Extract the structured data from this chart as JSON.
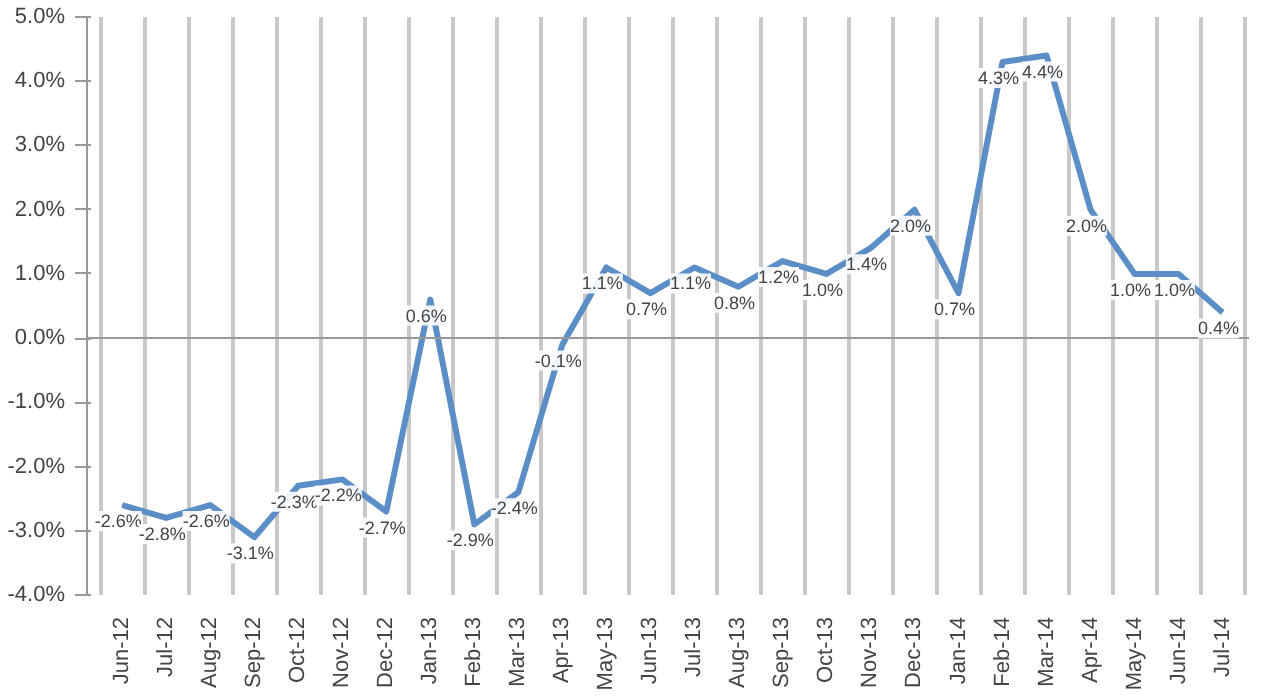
{
  "chart_data": {
    "type": "line",
    "categories": [
      "Jun-12",
      "Jul-12",
      "Aug-12",
      "Sep-12",
      "Oct-12",
      "Nov-12",
      "Dec-12",
      "Jan-13",
      "Feb-13",
      "Mar-13",
      "Apr-13",
      "May-13",
      "Jun-13",
      "Jul-13",
      "Aug-13",
      "Sep-13",
      "Oct-13",
      "Nov-13",
      "Dec-13",
      "Jan-14",
      "Feb-14",
      "Mar-14",
      "Apr-14",
      "May-14",
      "Jun-14",
      "Jul-14"
    ],
    "series": [
      {
        "color": "#5b8ec7",
        "values": [
          -2.6,
          -2.8,
          -2.6,
          -3.1,
          -2.3,
          -2.2,
          -2.7,
          0.6,
          -2.9,
          -2.4,
          -0.1,
          1.1,
          0.7,
          1.1,
          0.8,
          1.2,
          1.0,
          1.4,
          2.0,
          0.7,
          4.3,
          4.4,
          2.0,
          1.0,
          1.0,
          0.4
        ],
        "value_labels": [
          "-2.6%",
          "-2.8%",
          "-2.6%",
          "-3.1%",
          "-2.3%",
          "-2.2%",
          "-2.7%",
          "0.6%",
          "-2.9%",
          "-2.4%",
          "-0.1%",
          "1.1%",
          "0.7%",
          "1.1%",
          "0.8%",
          "1.2%",
          "1.0%",
          "1.4%",
          "2.0%",
          "0.7%",
          "4.3%",
          "4.4%",
          "2.0%",
          "1.0%",
          "1.0%",
          "0.4%"
        ]
      }
    ],
    "ylim": [
      -4,
      5
    ],
    "yticks": [
      {
        "value": -4,
        "label": "-4.0%"
      },
      {
        "value": -3,
        "label": "-3.0%"
      },
      {
        "value": -2,
        "label": "-2.0%"
      },
      {
        "value": -1,
        "label": "-1.0%"
      },
      {
        "value": 0,
        "label": "0.0%"
      },
      {
        "value": 1,
        "label": "1.0%"
      },
      {
        "value": 2,
        "label": "2.0%"
      },
      {
        "value": 3,
        "label": "3.0%"
      },
      {
        "value": 4,
        "label": "4.0%"
      },
      {
        "value": 5,
        "label": "5.0%"
      }
    ],
    "grid": "x",
    "marker": "none",
    "line_style": "solid"
  }
}
